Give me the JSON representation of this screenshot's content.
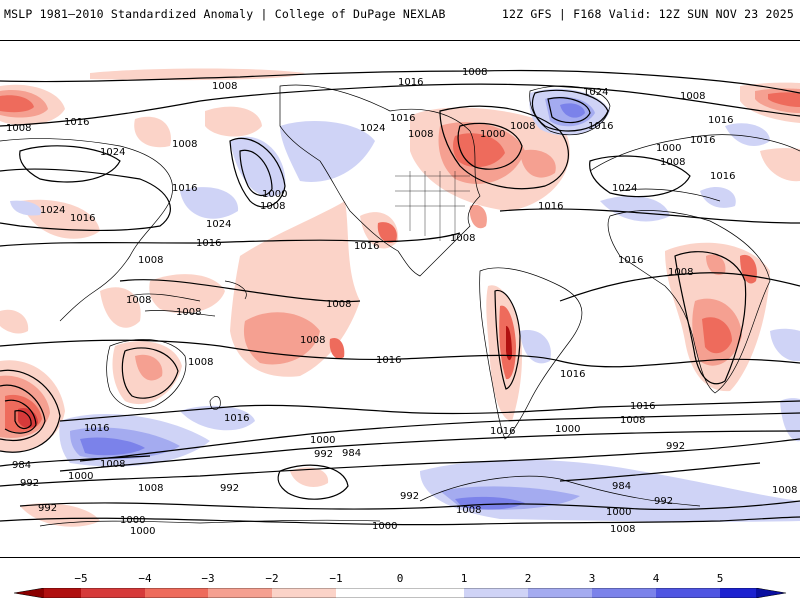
{
  "header": {
    "title_left": "MSLP 1981–2010 Standardized Anomaly | College of DuPage NEXLAB",
    "title_right": "12Z GFS | F168 Valid: 12Z SUN NOV 23 2025"
  },
  "colors": {
    "neg5": "#b01010",
    "neg4": "#d63a3a",
    "neg3": "#ee6b5c",
    "neg2": "#f5a091",
    "neg1": "#fbd3c8",
    "pos1": "#cfd3f6",
    "pos2": "#a4abf0",
    "pos3": "#7b82ea",
    "pos4": "#4f55e2",
    "pos5": "#1c22d0",
    "coast": "#000000",
    "contour": "#000000"
  },
  "colorbar": {
    "ticks": [
      "−5",
      "−4",
      "−3",
      "−2",
      "−1",
      "0",
      "1",
      "2",
      "3",
      "4",
      "5"
    ]
  },
  "isobar_labels": [
    "1008",
    "1016",
    "1008",
    "1024",
    "1008",
    "1008",
    "1016",
    "1024",
    "1008",
    "1016",
    "1016",
    "1008",
    "1024",
    "1016",
    "1000",
    "1008",
    "1016",
    "1008",
    "1000",
    "1016",
    "1024",
    "1016",
    "1024",
    "1016",
    "1016",
    "1024",
    "1008",
    "1008",
    "1008",
    "1000",
    "1008",
    "1008",
    "1008",
    "1008",
    "1016",
    "1016",
    "1016",
    "1008",
    "1016",
    "1008",
    "1016",
    "1016",
    "1000",
    "992",
    "984",
    "992",
    "1000",
    "1008",
    "1008",
    "992",
    "984",
    "992",
    "1016",
    "1000",
    "1000",
    "992",
    "1008",
    "1000",
    "992",
    "984",
    "1008",
    "1016",
    "1016",
    "1000",
    "1008",
    "992",
    "1000",
    "1008"
  ]
}
